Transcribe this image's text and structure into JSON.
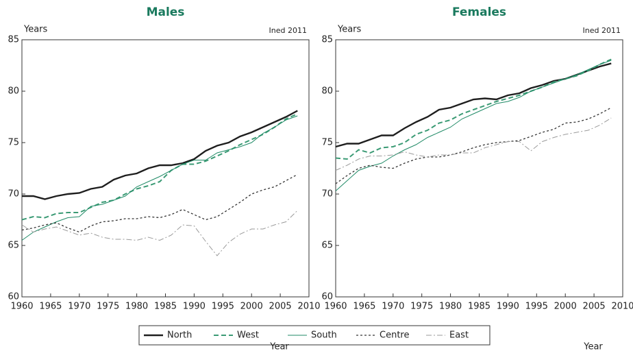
{
  "chart_data": [
    {
      "type": "line",
      "title": "Males",
      "ylabel": "Years",
      "xlabel": "Year",
      "source": "Ined 2011",
      "x": [
        1960,
        1962,
        1964,
        1966,
        1968,
        1970,
        1972,
        1974,
        1976,
        1978,
        1980,
        1982,
        1984,
        1986,
        1988,
        1990,
        1992,
        1994,
        1996,
        1998,
        2000,
        2002,
        2004,
        2006,
        2008
      ],
      "xlim": [
        1960,
        2010
      ],
      "xticks": [
        1960,
        1965,
        1970,
        1975,
        1980,
        1985,
        1990,
        1995,
        2000,
        2005,
        2010
      ],
      "ylim": [
        60,
        85
      ],
      "yticks": [
        60,
        65,
        70,
        75,
        80,
        85
      ],
      "grid": false,
      "series": [
        {
          "name": "North",
          "color": "#1e1e1e",
          "values": [
            69.8,
            69.8,
            69.5,
            69.8,
            70.0,
            70.1,
            70.5,
            70.7,
            71.4,
            71.8,
            72.0,
            72.5,
            72.8,
            72.8,
            73.0,
            73.4,
            74.2,
            74.7,
            75.0,
            75.6,
            76.0,
            76.5,
            77.0,
            77.5,
            78.1
          ]
        },
        {
          "name": "West",
          "color": "#3a9a74",
          "values": [
            67.5,
            67.8,
            67.7,
            68.1,
            68.2,
            68.2,
            68.7,
            69.2,
            69.4,
            70.0,
            70.5,
            70.8,
            71.2,
            72.3,
            72.9,
            72.9,
            73.2,
            73.7,
            74.2,
            74.8,
            75.3,
            75.8,
            76.5,
            77.3,
            77.8
          ]
        },
        {
          "name": "South",
          "color": "#1f8a66",
          "values": [
            65.5,
            66.3,
            66.8,
            67.3,
            67.7,
            67.8,
            68.8,
            69.0,
            69.4,
            69.8,
            70.7,
            71.2,
            71.7,
            72.3,
            72.9,
            73.3,
            73.3,
            74.0,
            74.3,
            74.6,
            75.0,
            75.9,
            76.5,
            77.2,
            77.6
          ]
        },
        {
          "name": "Centre",
          "color": "#333333",
          "values": [
            66.5,
            66.7,
            67.0,
            67.2,
            66.7,
            66.3,
            66.9,
            67.3,
            67.4,
            67.6,
            67.6,
            67.8,
            67.7,
            68.0,
            68.5,
            68.0,
            67.5,
            67.8,
            68.5,
            69.2,
            70.0,
            70.4,
            70.7,
            71.3,
            71.9
          ]
        },
        {
          "name": "East",
          "color": "#9a9a9a",
          "values": [
            67.0,
            66.3,
            66.6,
            66.8,
            66.4,
            66.0,
            66.2,
            65.8,
            65.6,
            65.6,
            65.5,
            65.8,
            65.5,
            66.0,
            67.0,
            66.9,
            65.4,
            64.0,
            65.3,
            66.1,
            66.6,
            66.6,
            67.0,
            67.3,
            68.4
          ]
        }
      ]
    },
    {
      "type": "line",
      "title": "Females",
      "ylabel": "Years",
      "xlabel": "Year",
      "source": "Ined 2011",
      "x": [
        1960,
        1962,
        1964,
        1966,
        1968,
        1970,
        1972,
        1974,
        1976,
        1978,
        1980,
        1982,
        1984,
        1986,
        1988,
        1990,
        1992,
        1994,
        1996,
        1998,
        2000,
        2002,
        2004,
        2006,
        2008
      ],
      "xlim": [
        1960,
        2010
      ],
      "xticks": [
        1960,
        1965,
        1970,
        1975,
        1980,
        1985,
        1990,
        1995,
        2000,
        2005,
        2010
      ],
      "ylim": [
        60,
        85
      ],
      "yticks": [
        60,
        65,
        70,
        75,
        80,
        85
      ],
      "grid": false,
      "series": [
        {
          "name": "North",
          "color": "#1e1e1e",
          "values": [
            74.6,
            74.9,
            74.9,
            75.3,
            75.7,
            75.7,
            76.4,
            77.0,
            77.5,
            78.2,
            78.4,
            78.8,
            79.2,
            79.3,
            79.2,
            79.6,
            79.8,
            80.3,
            80.6,
            81.0,
            81.2,
            81.6,
            82.0,
            82.4,
            82.7
          ]
        },
        {
          "name": "West",
          "color": "#3a9a74",
          "values": [
            73.5,
            73.4,
            74.3,
            74.0,
            74.5,
            74.6,
            75.0,
            75.8,
            76.2,
            76.9,
            77.2,
            77.8,
            78.2,
            78.6,
            79.0,
            79.3,
            79.6,
            80.0,
            80.4,
            80.9,
            81.2,
            81.5,
            82.0,
            82.6,
            83.1
          ]
        },
        {
          "name": "South",
          "color": "#1f8a66",
          "values": [
            70.3,
            71.3,
            72.3,
            72.7,
            73.0,
            73.7,
            74.3,
            74.8,
            75.5,
            76.0,
            76.5,
            77.3,
            77.8,
            78.3,
            78.8,
            79.0,
            79.4,
            80.0,
            80.4,
            80.8,
            81.2,
            81.6,
            82.1,
            82.6,
            83.0
          ]
        },
        {
          "name": "Centre",
          "color": "#333333",
          "values": [
            71.0,
            71.8,
            72.5,
            72.8,
            72.6,
            72.5,
            73.0,
            73.4,
            73.6,
            73.6,
            73.8,
            74.1,
            74.5,
            74.8,
            75.0,
            75.1,
            75.2,
            75.6,
            76.0,
            76.3,
            76.9,
            77.0,
            77.3,
            77.8,
            78.4
          ]
        },
        {
          "name": "East",
          "color": "#9a9a9a",
          "values": [
            72.3,
            72.8,
            73.4,
            73.7,
            73.7,
            73.8,
            74.1,
            73.8,
            73.6,
            73.8,
            73.8,
            74.0,
            74.0,
            74.5,
            74.8,
            75.1,
            75.1,
            74.2,
            75.1,
            75.5,
            75.8,
            76.0,
            76.2,
            76.7,
            77.4
          ]
        }
      ]
    }
  ]
}
